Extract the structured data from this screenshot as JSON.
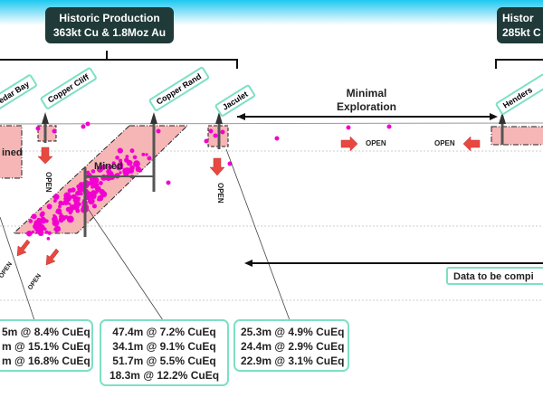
{
  "header": {
    "left_box": {
      "line1": "Historic Production",
      "line2": "363kt Cu & 1.8Moz Au"
    },
    "right_box": {
      "line1": "Histor",
      "line2": "285kt C"
    }
  },
  "mines": [
    {
      "name": "Cedar Bay"
    },
    {
      "name": "Copper Cliff"
    },
    {
      "name": "Copper Rand"
    },
    {
      "name": "Jaculet"
    },
    {
      "name": "Henders"
    }
  ],
  "labels": {
    "mined": "Mined",
    "mined_left": "ined",
    "open": "OPEN",
    "minimal_exploration": [
      "Minimal",
      "Exploration"
    ],
    "data_to_be_compiled": "Data to be compi"
  },
  "callouts": [
    {
      "lines": [
        "5m @ 8.4% CuEq",
        "m @ 15.1% CuEq",
        "m @ 16.8% CuEq"
      ]
    },
    {
      "lines": [
        "47.4m @ 7.2% CuEq",
        "34.1m @ 9.1% CuEq",
        "51.7m @ 5.5% CuEq",
        "18.3m @ 12.2% CuEq"
      ]
    },
    {
      "lines": [
        "25.3m @ 4.9% CuEq",
        "24.4m @ 2.9% CuEq",
        "22.9m @ 3.1% CuEq"
      ]
    }
  ],
  "colors": {
    "mined_fill": "#f7b6b6",
    "sample": "#f200d0",
    "arrow": "#e8483f",
    "box_border": "#7de0c4",
    "header_box": "#1f3a38"
  }
}
